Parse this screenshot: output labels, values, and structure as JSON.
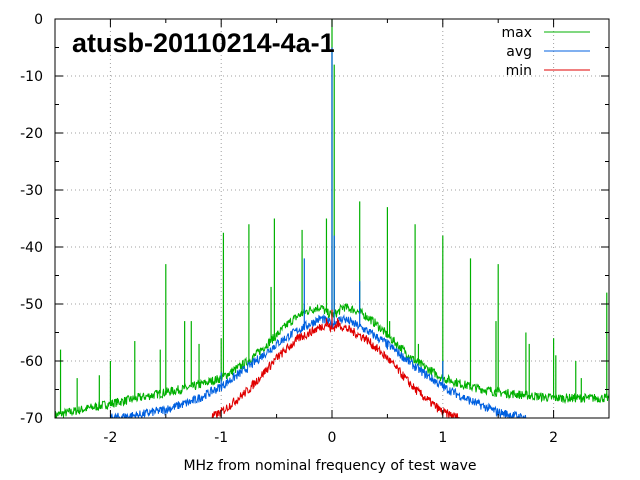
{
  "chart_data": {
    "type": "line",
    "title": "atusb-20110214-4a-1",
    "xlabel": "MHz from nominal frequency of test wave",
    "ylabel": "",
    "xlim": [
      -2.5,
      2.5
    ],
    "ylim": [
      -70,
      0
    ],
    "xticks": [
      -2,
      -1,
      0,
      1,
      2
    ],
    "yticks": [
      0,
      -10,
      -20,
      -30,
      -40,
      -50,
      -60,
      -70
    ],
    "grid": true,
    "legend_position": "top-right",
    "series": [
      {
        "name": "max",
        "color": "#00b000",
        "x": [
          -2.5,
          -2.25,
          -2.0,
          -1.75,
          -1.5,
          -1.25,
          -1.0,
          -0.75,
          -0.5,
          -0.4,
          -0.3,
          -0.2,
          -0.1,
          -0.05,
          0,
          0.05,
          0.1,
          0.2,
          0.3,
          0.4,
          0.5,
          0.75,
          1.0,
          1.25,
          1.5,
          1.75,
          2.0,
          2.25,
          2.5
        ],
        "values": [
          -69.5,
          -68.5,
          -67.5,
          -66.5,
          -65.5,
          -64.5,
          -63,
          -60,
          -55.5,
          -53.5,
          -52,
          -51,
          -50.5,
          -51.5,
          -52,
          -51.5,
          -50.5,
          -51,
          -52,
          -53.5,
          -55.5,
          -60,
          -63,
          -64.5,
          -65.5,
          -66,
          -66.5,
          -66.5,
          -66.5
        ],
        "spikes": [
          {
            "x": -2.45,
            "y": -58
          },
          {
            "x": -2.3,
            "y": -63
          },
          {
            "x": -2.1,
            "y": -62.5
          },
          {
            "x": -2.0,
            "y": -60
          },
          {
            "x": -1.78,
            "y": -56.5
          },
          {
            "x": -1.55,
            "y": -58
          },
          {
            "x": -1.5,
            "y": -43
          },
          {
            "x": -1.33,
            "y": -53
          },
          {
            "x": -1.27,
            "y": -53
          },
          {
            "x": -1.2,
            "y": -57
          },
          {
            "x": -1.0,
            "y": -56
          },
          {
            "x": -0.98,
            "y": -37.5
          },
          {
            "x": -0.75,
            "y": -36
          },
          {
            "x": -0.55,
            "y": -47
          },
          {
            "x": -0.52,
            "y": -35
          },
          {
            "x": -0.27,
            "y": -37
          },
          {
            "x": -0.25,
            "y": -50
          },
          {
            "x": -0.05,
            "y": -35
          },
          {
            "x": 0,
            "y": 0
          },
          {
            "x": 0.02,
            "y": -8
          },
          {
            "x": 0.25,
            "y": -32
          },
          {
            "x": 0.5,
            "y": -33
          },
          {
            "x": 0.52,
            "y": -53
          },
          {
            "x": 0.75,
            "y": -36
          },
          {
            "x": 0.78,
            "y": -57
          },
          {
            "x": 1.0,
            "y": -38
          },
          {
            "x": 1.25,
            "y": -42
          },
          {
            "x": 1.48,
            "y": -53
          },
          {
            "x": 1.5,
            "y": -43
          },
          {
            "x": 1.75,
            "y": -55
          },
          {
            "x": 1.78,
            "y": -57
          },
          {
            "x": 2.0,
            "y": -56
          },
          {
            "x": 2.02,
            "y": -59
          },
          {
            "x": 2.2,
            "y": -60
          },
          {
            "x": 2.25,
            "y": -63
          },
          {
            "x": 2.48,
            "y": -48
          }
        ]
      },
      {
        "name": "avg",
        "color": "#0060e0",
        "x": [
          -2.0,
          -1.75,
          -1.5,
          -1.25,
          -1.0,
          -0.75,
          -0.5,
          -0.3,
          -0.2,
          -0.1,
          -0.05,
          0,
          0.05,
          0.1,
          0.2,
          0.3,
          0.5,
          0.75,
          1.0,
          1.25,
          1.5,
          1.75
        ],
        "values": [
          -70,
          -69.5,
          -68.5,
          -67,
          -64.5,
          -61,
          -57,
          -54.5,
          -53.5,
          -52.5,
          -53,
          -53.5,
          -53,
          -52.5,
          -53.5,
          -54.5,
          -57,
          -61,
          -64.5,
          -67,
          -69,
          -70
        ],
        "spikes": [
          {
            "x": 0,
            "y": -5
          },
          {
            "x": -0.25,
            "y": -42
          },
          {
            "x": 0.02,
            "y": -38
          },
          {
            "x": 0.25,
            "y": -46
          },
          {
            "x": -0.52,
            "y": -58
          },
          {
            "x": 0.5,
            "y": -58
          },
          {
            "x": -1.0,
            "y": -62
          },
          {
            "x": 1.0,
            "y": -60
          }
        ]
      },
      {
        "name": "min",
        "color": "#e00000",
        "x": [
          -1.1,
          -1.0,
          -0.75,
          -0.5,
          -0.3,
          -0.2,
          -0.1,
          -0.05,
          0,
          0.05,
          0.1,
          0.2,
          0.3,
          0.5,
          0.75,
          1.0,
          1.15
        ],
        "values": [
          -70,
          -69,
          -65,
          -59.5,
          -56,
          -55,
          -54,
          -53.5,
          -54.5,
          -53.5,
          -54,
          -55,
          -56,
          -59.5,
          -65,
          -69,
          -70
        ],
        "spikes": [
          {
            "x": 0,
            "y": -51
          },
          {
            "x": -0.05,
            "y": -52.5
          },
          {
            "x": 0.05,
            "y": -52.5
          }
        ]
      }
    ]
  }
}
